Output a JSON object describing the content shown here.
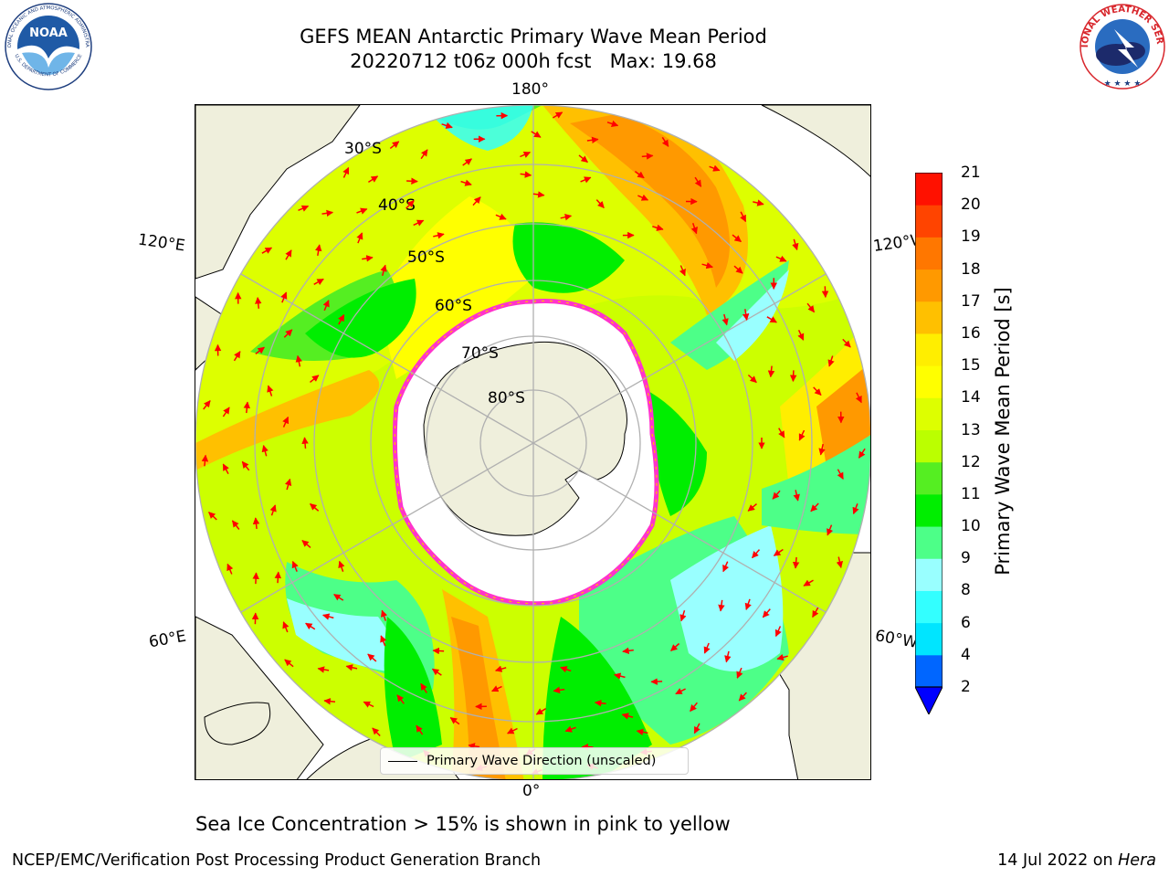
{
  "title": {
    "line1": "GEFS MEAN Antarctic Primary Wave Mean Period",
    "line2": "20220712 t06z 000h fcst   Max: 19.68"
  },
  "logos": {
    "left": {
      "name": "NOAA",
      "ring_text": "NATIONAL OCEANIC AND ATMOSPHERIC ADMINISTRATION",
      "bottom_text": "U.S. DEPARTMENT OF COMMERCE",
      "color": "#1f5aa6"
    },
    "right": {
      "ring_text": "NATIONAL WEATHER SERVICE",
      "color": "#d8262c"
    }
  },
  "map": {
    "projection": "south-polar-stereographic",
    "longitude_labels": {
      "top": "180°",
      "bottom": "0°",
      "upper_left": "120°E",
      "upper_right": "120°W",
      "lower_left": "60°E",
      "lower_right": "60°W"
    },
    "latitude_labels": [
      "30°S",
      "40°S",
      "50°S",
      "60°S",
      "70°S",
      "80°S"
    ],
    "legend": "Primary Wave Direction (unscaled)",
    "arrow_color": "#ff0000",
    "land_color": "#efefdc",
    "ice_edge_color": "#ff33cc"
  },
  "colorbar": {
    "label": "Primary Wave Mean Period [s]",
    "ticks": [
      "21",
      "20",
      "19",
      "18",
      "17",
      "16",
      "15",
      "14",
      "13",
      "12",
      "11",
      "10",
      "9",
      "8",
      "6",
      "4",
      "2"
    ],
    "levels": [
      2,
      4,
      6,
      8,
      9,
      10,
      11,
      12,
      13,
      14,
      15,
      16,
      17,
      18,
      19,
      20,
      21
    ],
    "colors": [
      "#0066ff",
      "#00e5ff",
      "#33ffff",
      "#99ffff",
      "#4dff88",
      "#00ee00",
      "#55ee22",
      "#bbff00",
      "#ddff00",
      "#ffff00",
      "#ffee00",
      "#ffc000",
      "#ff9900",
      "#ff7700",
      "#ff4400",
      "#ff1100"
    ],
    "under_color": "#0000ff"
  },
  "caption": "Sea Ice Concentration > 15% is shown in pink to yellow",
  "footer": {
    "left": "NCEP/EMC/Verification Post Processing Product Generation Branch",
    "right_date": "14 Jul 2022 on ",
    "right_host": "Hera"
  }
}
